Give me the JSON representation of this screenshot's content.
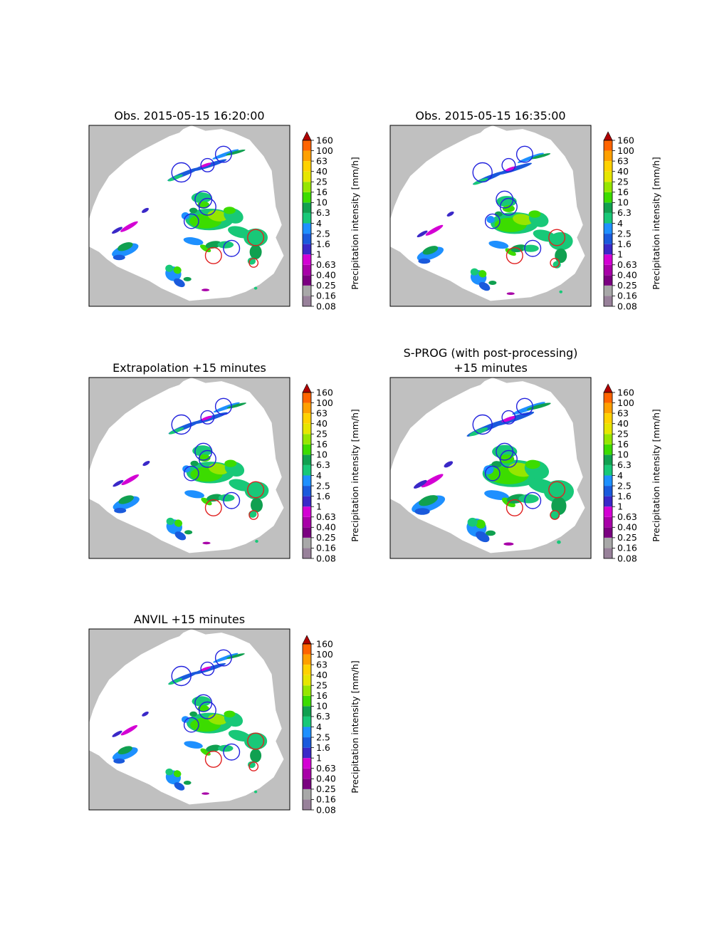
{
  "colorbar": {
    "label": "Precipitation intensity [mm/h]",
    "levels": [
      "0.08",
      "0.16",
      "0.25",
      "0.40",
      "0.63",
      "1",
      "1.6",
      "2.5",
      "4",
      "6.3",
      "10",
      "16",
      "25",
      "40",
      "63",
      "100",
      "160"
    ],
    "colors": [
      "#98819a",
      "#a8a8a8",
      "#7a0080",
      "#a800a8",
      "#d400d4",
      "#3a28c8",
      "#1a5adc",
      "#1e90ff",
      "#18c878",
      "#10a050",
      "#3cdc00",
      "#96e600",
      "#e6e600",
      "#ffd200",
      "#ffa000",
      "#ff6400",
      "#dc1e00"
    ],
    "extend_color": "#b00000"
  },
  "panels": [
    {
      "title_lines": [
        "Obs. 2015-05-15 16:20:00"
      ],
      "variant": "obs1"
    },
    {
      "title_lines": [
        "Obs. 2015-05-15 16:35:00"
      ],
      "variant": "obs2"
    },
    {
      "title_lines": [
        "Extrapolation +15 minutes"
      ],
      "variant": "extrap"
    },
    {
      "title_lines": [
        "S-PROG (with post-processing)",
        "+15 minutes"
      ],
      "variant": "sprog"
    },
    {
      "title_lines": [
        "ANVIL +15 minutes"
      ],
      "variant": "anvil"
    }
  ],
  "colors": {
    "outside_radar": "#c0c0c0",
    "inside_radar": "#ffffff",
    "circle_blue": "#2222dd",
    "circle_red": "#e02020"
  }
}
